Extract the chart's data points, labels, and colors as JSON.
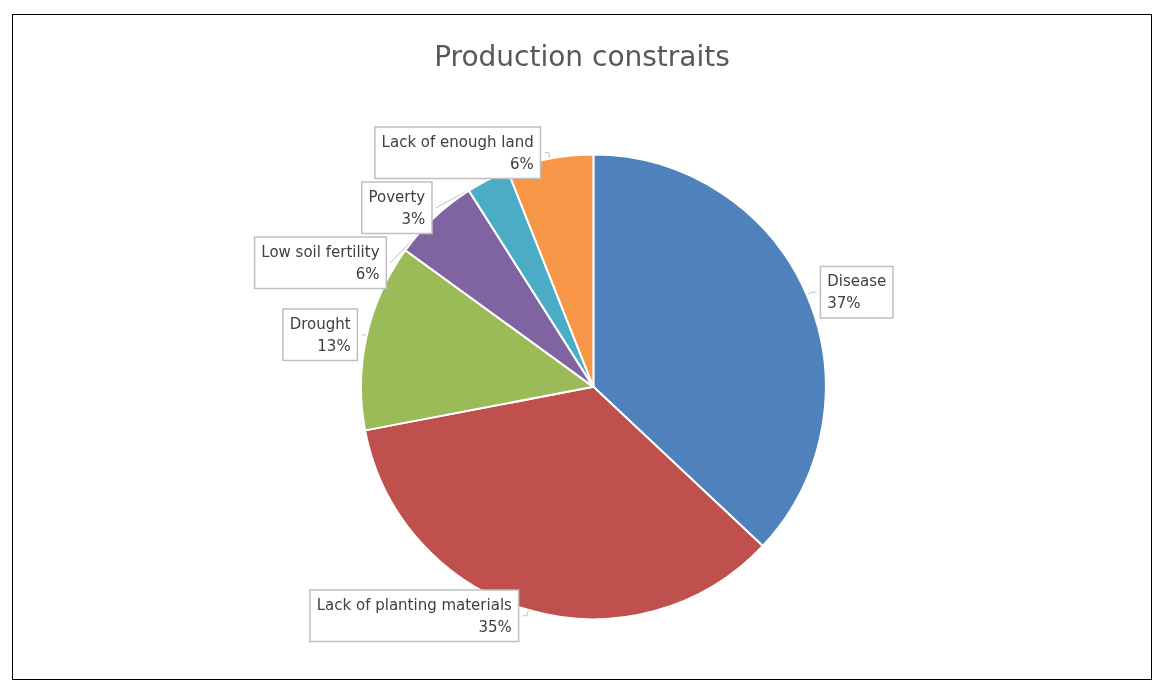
{
  "chart_data": {
    "type": "pie",
    "title": "Production constraits",
    "categories": [
      "Disease",
      "Lack of planting materials",
      "Drought",
      "Low soil fertility",
      "Poverty",
      "Lack of enough land"
    ],
    "values": [
      37,
      35,
      13,
      6,
      3,
      6
    ],
    "value_labels": [
      "37%",
      "35%",
      "13%",
      "6%",
      "3%",
      "6%"
    ],
    "colors": [
      "#4f81bd",
      "#c0504d",
      "#9bbb59",
      "#8064a2",
      "#4bacc6",
      "#f79646"
    ],
    "legend": false
  }
}
